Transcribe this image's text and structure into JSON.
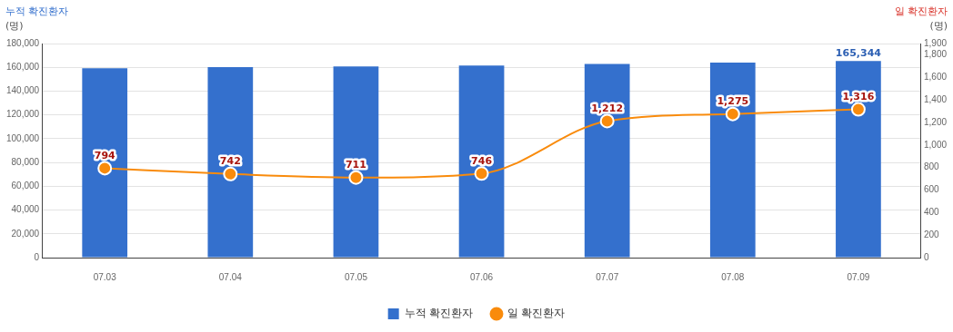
{
  "chart_data": {
    "type": "bar",
    "ylabel": "누적 확진환자\n(명)",
    "y2label": "일 확진환자\n(명)",
    "categories": [
      "07.03",
      "07.04",
      "07.05",
      "07.06",
      "07.07",
      "07.08",
      "07.09"
    ],
    "series": [
      {
        "name": "누적 확진환자",
        "color": "#3470cd",
        "values": [
          159300,
          160100,
          160800,
          161500,
          162800,
          164000,
          165344
        ],
        "value_labels": [
          null,
          null,
          null,
          null,
          null,
          null,
          "165,344"
        ]
      },
      {
        "name": "일 확진환자",
        "type": "line",
        "axis": "y2",
        "color": "#f98b0c",
        "values": [
          794,
          742,
          711,
          746,
          1212,
          1275,
          1316
        ],
        "value_labels": [
          "794",
          "742",
          "711",
          "746",
          "1,212",
          "1,275",
          "1,316"
        ]
      }
    ],
    "ylim": [
      0,
      180000
    ],
    "yticks": [
      0,
      {
        "value": 20000,
        "label": "20,000"
      },
      {
        "value": 40000,
        "label": "40,000"
      },
      {
        "value": 60000,
        "label": "60,000"
      },
      {
        "value": 80000,
        "label": "80,000"
      },
      {
        "value": 100000,
        "label": "100,000"
      },
      {
        "value": 120000,
        "label": "120,000"
      },
      {
        "value": 140000,
        "label": "140,000"
      },
      {
        "value": 160000,
        "label": "160,000"
      },
      {
        "value": 180000,
        "label": "180,000"
      }
    ],
    "y2lim": [
      0,
      1900
    ],
    "y2ticks": [
      0,
      200,
      400,
      600,
      800,
      {
        "value": 1000,
        "label": "1,000"
      },
      {
        "value": 1200,
        "label": "1,200"
      },
      {
        "value": 1400,
        "label": "1,400"
      },
      {
        "value": 1600,
        "label": "1,600"
      },
      {
        "value": 1800,
        "label": "1,800"
      },
      {
        "value": 1900,
        "label": "1,900"
      }
    ],
    "grid": "y",
    "legend": "bottom",
    "marker": "circle",
    "line_style": "solid"
  }
}
